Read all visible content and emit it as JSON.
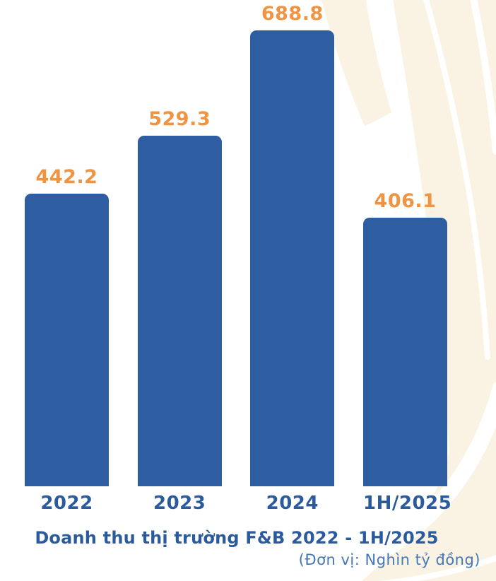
{
  "chart_data": {
    "type": "bar",
    "categories": [
      "2022",
      "2023",
      "2024",
      "1H/2025"
    ],
    "values": [
      442.2,
      529.3,
      688.8,
      406.1
    ],
    "value_labels": [
      "442.2",
      "529.3",
      "688.8",
      "406.1"
    ],
    "title": "Doanh thu thị trường F&B 2022 - 1H/2025",
    "unit_note": "(Đơn vị: Nghìn tỷ đồng)",
    "xlabel": "",
    "ylabel": "",
    "ylim": [
      0,
      700
    ],
    "grid": false,
    "legend": false,
    "colors": {
      "bar": "#2E5EA1",
      "value_label": "#EF9443",
      "category_label": "#2B5B9D",
      "title": "#2B5B9D",
      "unit_note": "#4577B5",
      "background_accent": "#FAF3E3",
      "background": "#FFFFFF"
    }
  }
}
